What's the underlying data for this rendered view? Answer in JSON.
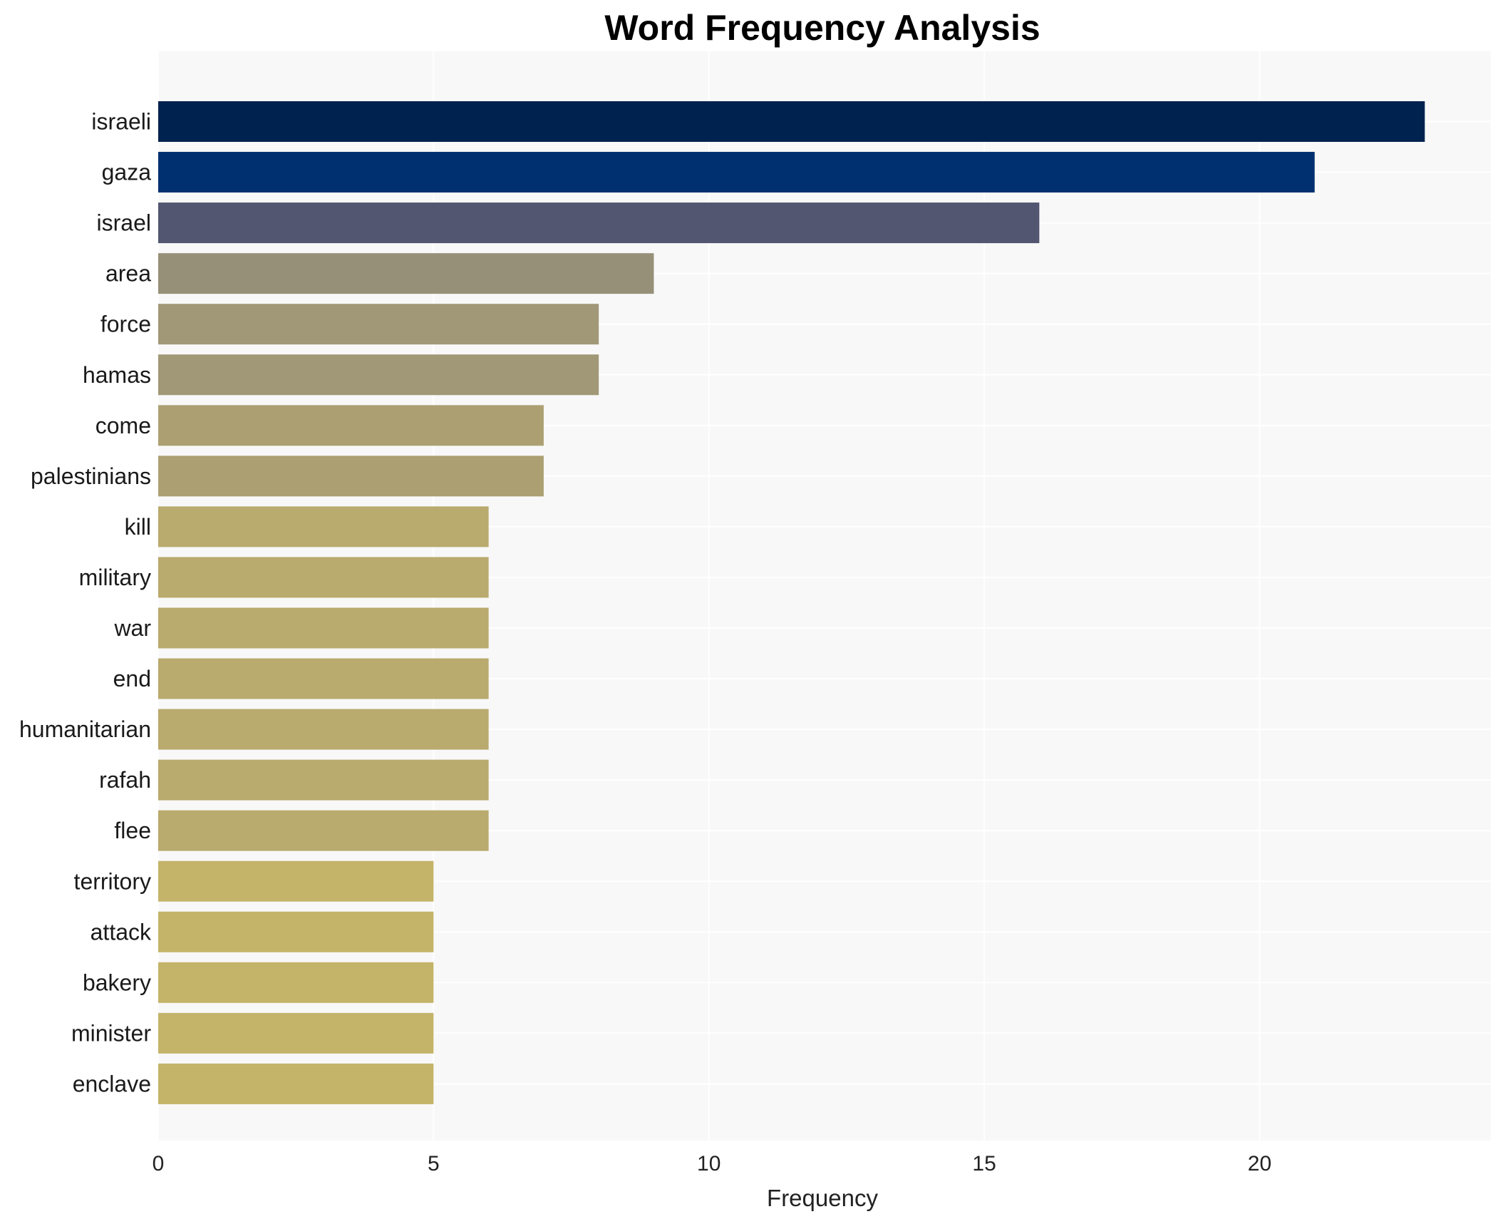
{
  "chart_data": {
    "type": "bar",
    "orientation": "horizontal",
    "title": "Word Frequency Analysis",
    "xlabel": "Frequency",
    "ylabel": "",
    "xlim": [
      0,
      24.2
    ],
    "xticks": [
      0,
      5,
      10,
      15,
      20
    ],
    "grid": true,
    "legend": "none",
    "categories": [
      "israeli",
      "gaza",
      "israel",
      "area",
      "force",
      "hamas",
      "come",
      "palestinians",
      "kill",
      "military",
      "war",
      "end",
      "humanitarian",
      "rafah",
      "flee",
      "territory",
      "attack",
      "bakery",
      "minister",
      "enclave"
    ],
    "values": [
      23,
      21,
      16,
      9,
      8,
      8,
      7,
      7,
      6,
      6,
      6,
      6,
      6,
      6,
      6,
      5,
      5,
      5,
      5,
      5
    ],
    "colors": [
      "#00224e",
      "#00306f",
      "#525670",
      "#979079",
      "#a19877",
      "#a19877",
      "#aca073",
      "#aca073",
      "#b9aa6e",
      "#b9aa6e",
      "#b9aa6e",
      "#b9aa6e",
      "#b9aa6e",
      "#b9aa6e",
      "#b9aa6e",
      "#c4b46a",
      "#c4b46a",
      "#c4b46a",
      "#c4b46a",
      "#c4b46a"
    ],
    "plot_background": "#f8f8f8"
  }
}
